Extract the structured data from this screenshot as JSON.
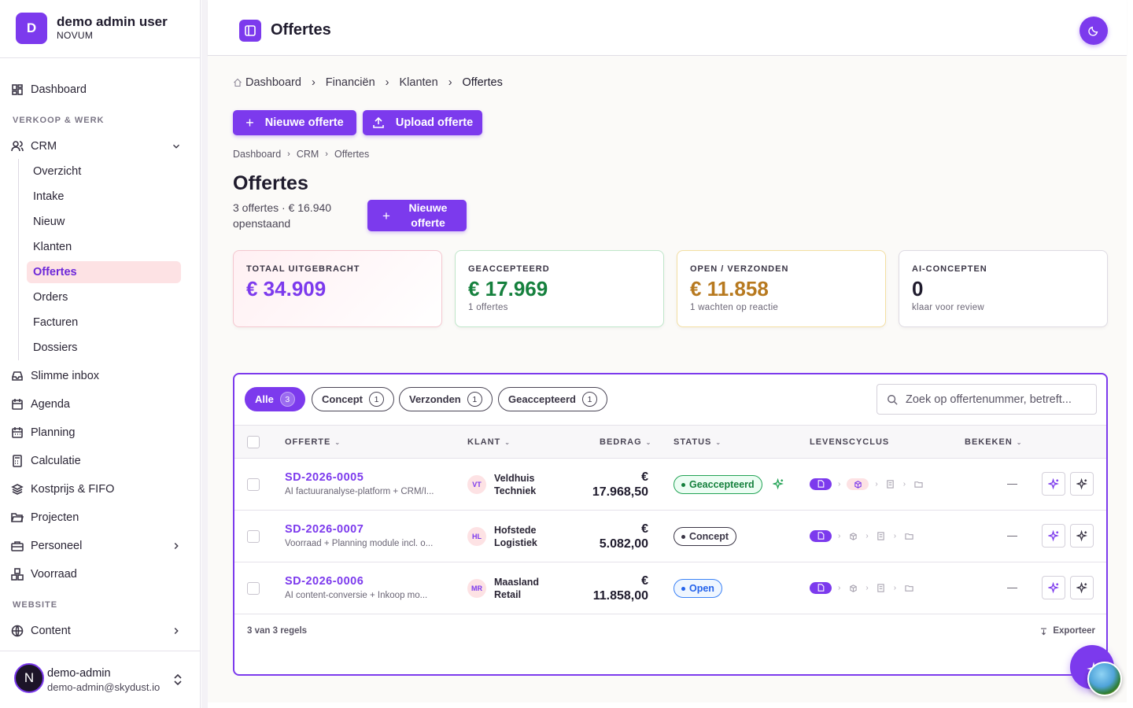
{
  "app": {
    "user_title": "demo admin user",
    "org": "NOVUM",
    "logo_letter": "D"
  },
  "nav": {
    "dashboard": "Dashboard",
    "section_sales": "VERKOOP & WERK",
    "crm": "CRM",
    "crm_items": [
      "Overzicht",
      "Intake",
      "Nieuw",
      "Klanten",
      "Offertes",
      "Orders",
      "Facturen",
      "Dossiers"
    ],
    "crm_active": "Offertes",
    "inbox": "Slimme inbox",
    "agenda": "Agenda",
    "planning": "Planning",
    "calculatie": "Calculatie",
    "kostprijs": "Kostprijs & FIFO",
    "projecten": "Projecten",
    "personeel": "Personeel",
    "voorraad": "Voorraad",
    "section_website": "WEBSITE",
    "content": "Content"
  },
  "user": {
    "avatar_letter": "N",
    "name": "demo-admin",
    "email": "demo-admin@skydust.io"
  },
  "topbar": {
    "title": "Offertes"
  },
  "breadcrumb_top": [
    "Dashboard",
    "Financiën",
    "Klanten",
    "Offertes"
  ],
  "actions": {
    "new_quote": "Nieuwe offerte",
    "upload_quote": "Upload offerte"
  },
  "breadcrumb_page": [
    "Dashboard",
    "CRM",
    "Offertes"
  ],
  "page": {
    "title": "Offertes",
    "subtitle": "3 offertes · € 16.940 openstaand",
    "new_button": "Nieuwe offerte"
  },
  "stats": [
    {
      "label": "TOTAAL UITGEBRACHT",
      "value": "€ 34.909",
      "note": "",
      "color": "#7c3aed"
    },
    {
      "label": "GEACCEPTEERD",
      "value": "€ 17.969",
      "note": "1 offertes",
      "color": "#15803d"
    },
    {
      "label": "OPEN / VERZONDEN",
      "value": "€ 11.858",
      "note": "1 wachten op reactie",
      "color": "#b7791f"
    },
    {
      "label": "AI-CONCEPTEN",
      "value": "0",
      "note": "klaar voor review",
      "color": "#1f1b2d"
    }
  ],
  "filters": {
    "tabs": [
      {
        "label": "Alle",
        "count": "3"
      },
      {
        "label": "Concept",
        "count": "1"
      },
      {
        "label": "Verzonden",
        "count": "1"
      },
      {
        "label": "Geaccepteerd",
        "count": "1"
      }
    ],
    "search_placeholder": "Zoek op offertenummer, betreft..."
  },
  "table": {
    "headers": {
      "offerte": "OFFERTE",
      "klant": "KLANT",
      "bedrag": "BEDRAG",
      "status": "STATUS",
      "levenscyclus": "LEVENSCYCLUS",
      "bekeken": "BEKEKEN"
    },
    "rows": [
      {
        "number": "SD-2026-0005",
        "desc": "AI factuuranalyse-platform + CRM/I...",
        "initials": "VT",
        "client": "Veldhuis Techniek",
        "currency": "€",
        "amount": "17.968,50",
        "status": "Geaccepteerd",
        "status_color": "#15803d",
        "viewed": "—"
      },
      {
        "number": "SD-2026-0007",
        "desc": "Voorraad + Planning module incl. o...",
        "initials": "HL",
        "client": "Hofstede Logistiek",
        "currency": "€",
        "amount": "5.082,00",
        "status": "Concept",
        "status_color": "#3a3545",
        "viewed": "—"
      },
      {
        "number": "SD-2026-0006",
        "desc": "AI content-conversie + Inkoop mo...",
        "initials": "MR",
        "client": "Maasland Retail",
        "currency": "€",
        "amount": "11.858,00",
        "status": "Open",
        "status_color": "#2563eb",
        "viewed": "—"
      }
    ],
    "footer_count": "3 van 3 regels",
    "export": "Exporteer"
  },
  "icons": {
    "sparkle": "sparkle-icon",
    "globe": "globe-icon",
    "moon": "moon-icon"
  }
}
